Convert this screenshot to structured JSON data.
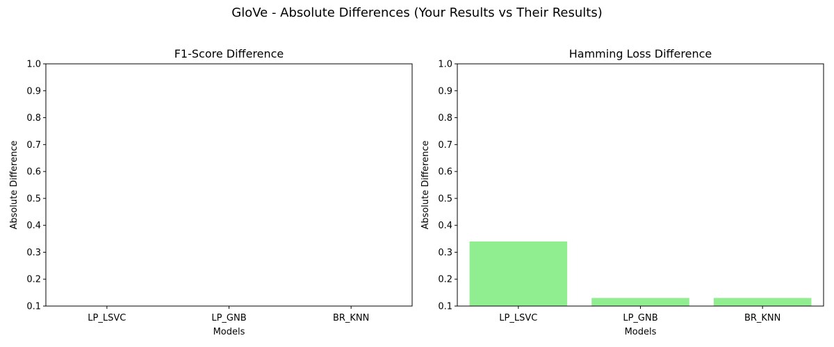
{
  "figure": {
    "suptitle": "GloVe - Absolute Differences (Your Results vs Their Results)"
  },
  "chart_data": [
    {
      "type": "bar",
      "title": "F1-Score Difference",
      "xlabel": "Models",
      "ylabel": "Absolute Difference",
      "categories": [
        "LP_LSVC",
        "LP_GNB",
        "BR_KNN"
      ],
      "values": [
        0.0,
        0.0,
        0.0
      ],
      "ylim": [
        0.1,
        1.0
      ],
      "yticks": [
        "0.1",
        "0.2",
        "0.3",
        "0.4",
        "0.5",
        "0.6",
        "0.7",
        "0.8",
        "0.9",
        "1.0"
      ],
      "bar_color": "#90ee90",
      "grid": false
    },
    {
      "type": "bar",
      "title": "Hamming Loss Difference",
      "xlabel": "Models",
      "ylabel": "Absolute Difference",
      "categories": [
        "LP_LSVC",
        "LP_GNB",
        "BR_KNN"
      ],
      "values": [
        0.34,
        0.13,
        0.13
      ],
      "ylim": [
        0.1,
        1.0
      ],
      "yticks": [
        "0.1",
        "0.2",
        "0.3",
        "0.4",
        "0.5",
        "0.6",
        "0.7",
        "0.8",
        "0.9",
        "1.0"
      ],
      "bar_color": "#90ee90",
      "grid": false
    }
  ]
}
